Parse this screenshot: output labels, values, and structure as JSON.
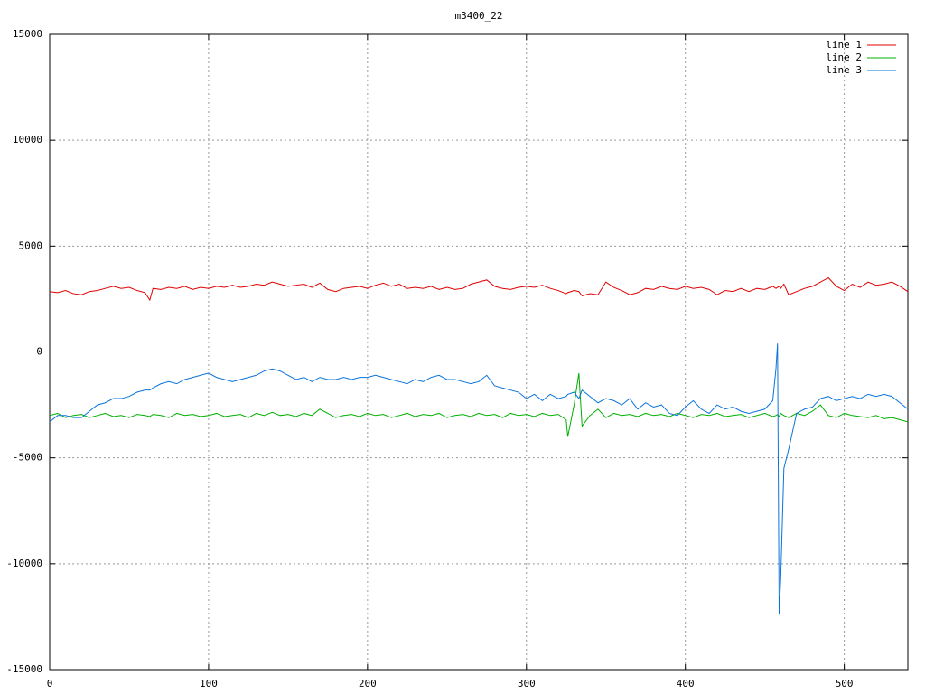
{
  "chart_data": {
    "type": "line",
    "title": "m3400_22",
    "x": [
      0,
      5,
      10,
      15,
      20,
      25,
      30,
      35,
      40,
      45,
      50,
      55,
      60,
      63,
      65,
      70,
      75,
      80,
      85,
      90,
      95,
      100,
      105,
      110,
      115,
      120,
      125,
      130,
      135,
      140,
      145,
      150,
      155,
      160,
      165,
      170,
      175,
      180,
      185,
      190,
      195,
      200,
      205,
      210,
      215,
      220,
      225,
      230,
      235,
      240,
      245,
      250,
      255,
      260,
      265,
      270,
      275,
      280,
      285,
      290,
      295,
      300,
      305,
      310,
      315,
      320,
      325,
      326,
      330,
      333,
      335,
      340,
      345,
      350,
      355,
      360,
      365,
      370,
      375,
      380,
      385,
      390,
      395,
      400,
      405,
      410,
      415,
      420,
      425,
      430,
      435,
      440,
      445,
      450,
      455,
      457,
      458,
      459,
      460,
      462,
      465,
      470,
      475,
      480,
      485,
      490,
      495,
      500,
      505,
      510,
      515,
      520,
      525,
      530,
      535,
      540
    ],
    "series": [
      {
        "name": "line 1",
        "color": "#e00000",
        "values": [
          2850,
          2800,
          2900,
          2750,
          2700,
          2850,
          2900,
          3000,
          3100,
          3000,
          3050,
          2900,
          2800,
          2450,
          3000,
          2950,
          3050,
          3000,
          3100,
          2950,
          3050,
          3000,
          3100,
          3050,
          3150,
          3050,
          3100,
          3200,
          3150,
          3300,
          3200,
          3100,
          3150,
          3200,
          3050,
          3250,
          2950,
          2850,
          3000,
          3050,
          3100,
          3000,
          3150,
          3250,
          3100,
          3200,
          3000,
          3050,
          3000,
          3100,
          2950,
          3050,
          2950,
          3000,
          3200,
          3300,
          3400,
          3100,
          3000,
          2950,
          3050,
          3100,
          3050,
          3150,
          3000,
          2900,
          2750,
          2800,
          2900,
          2850,
          2650,
          2750,
          2700,
          3300,
          3050,
          2900,
          2700,
          2800,
          3000,
          2950,
          3100,
          3000,
          2950,
          3100,
          3000,
          3050,
          2950,
          2700,
          2900,
          2850,
          3000,
          2850,
          3000,
          2950,
          3100,
          3000,
          3050,
          3100,
          3000,
          3200,
          2700,
          2850,
          3000,
          3100,
          3300,
          3500,
          3100,
          2900,
          3200,
          3050,
          3300,
          3150,
          3200,
          3300,
          3100,
          2850
        ]
      },
      {
        "name": "line 2",
        "color": "#00b000",
        "values": [
          -3000,
          -2900,
          -3100,
          -3000,
          -2950,
          -3100,
          -3000,
          -2900,
          -3050,
          -3000,
          -3100,
          -2950,
          -3000,
          -3050,
          -2950,
          -3000,
          -3100,
          -2900,
          -3000,
          -2950,
          -3050,
          -3000,
          -2900,
          -3050,
          -3000,
          -2950,
          -3100,
          -2900,
          -3000,
          -2850,
          -3000,
          -2950,
          -3050,
          -2900,
          -3000,
          -2700,
          -2900,
          -3100,
          -3000,
          -2950,
          -3050,
          -2900,
          -3000,
          -2950,
          -3100,
          -3000,
          -2900,
          -3050,
          -2950,
          -3000,
          -2900,
          -3100,
          -3000,
          -2950,
          -3050,
          -2900,
          -3000,
          -2950,
          -3100,
          -2900,
          -3000,
          -2950,
          -3050,
          -2900,
          -3000,
          -2950,
          -3200,
          -4000,
          -2500,
          -1000,
          -3500,
          -3000,
          -2700,
          -3100,
          -2900,
          -3000,
          -2950,
          -3050,
          -2900,
          -3000,
          -2950,
          -3050,
          -2900,
          -3000,
          -3100,
          -2950,
          -3000,
          -2900,
          -3050,
          -3000,
          -2950,
          -3100,
          -3000,
          -2900,
          -3050,
          -3000,
          -2950,
          -3050,
          -2900,
          -3000,
          -3100,
          -2900,
          -3000,
          -2800,
          -2500,
          -3000,
          -3100,
          -2900,
          -3000,
          -3050,
          -3100,
          -3000,
          -3150,
          -3100,
          -3200,
          -3300
        ]
      },
      {
        "name": "line 3",
        "color": "#0a74da",
        "values": [
          -3300,
          -3000,
          -3000,
          -3100,
          -3100,
          -2800,
          -2500,
          -2400,
          -2200,
          -2200,
          -2100,
          -1900,
          -1800,
          -1800,
          -1700,
          -1500,
          -1400,
          -1500,
          -1300,
          -1200,
          -1100,
          -1000,
          -1200,
          -1300,
          -1400,
          -1300,
          -1200,
          -1100,
          -900,
          -800,
          -900,
          -1100,
          -1300,
          -1200,
          -1400,
          -1200,
          -1300,
          -1300,
          -1200,
          -1300,
          -1200,
          -1200,
          -1100,
          -1200,
          -1300,
          -1400,
          -1500,
          -1300,
          -1400,
          -1200,
          -1100,
          -1300,
          -1300,
          -1400,
          -1500,
          -1400,
          -1100,
          -1600,
          -1700,
          -1800,
          -1900,
          -2200,
          -2000,
          -2300,
          -2000,
          -2200,
          -2100,
          -2000,
          -1900,
          -2200,
          -1800,
          -2100,
          -2400,
          -2200,
          -2300,
          -2500,
          -2200,
          -2700,
          -2400,
          -2600,
          -2500,
          -2900,
          -3000,
          -2600,
          -2300,
          -2700,
          -2900,
          -2500,
          -2700,
          -2600,
          -2800,
          -2900,
          -2800,
          -2700,
          -2300,
          -800,
          400,
          -12400,
          -10700,
          -5500,
          -4600,
          -2900,
          -2700,
          -2600,
          -2200,
          -2100,
          -2300,
          -2200,
          -2100,
          -2200,
          -2000,
          -2100,
          -2000,
          -2100,
          -2400,
          -2700
        ]
      }
    ],
    "xlim": [
      0,
      540
    ],
    "xticks": [
      0,
      100,
      200,
      300,
      400,
      500
    ],
    "ylim": [
      -15000,
      15000
    ],
    "yticks": [
      -15000,
      -10000,
      -5000,
      0,
      5000,
      10000,
      15000
    ],
    "grid": true,
    "legend": "top-right"
  }
}
